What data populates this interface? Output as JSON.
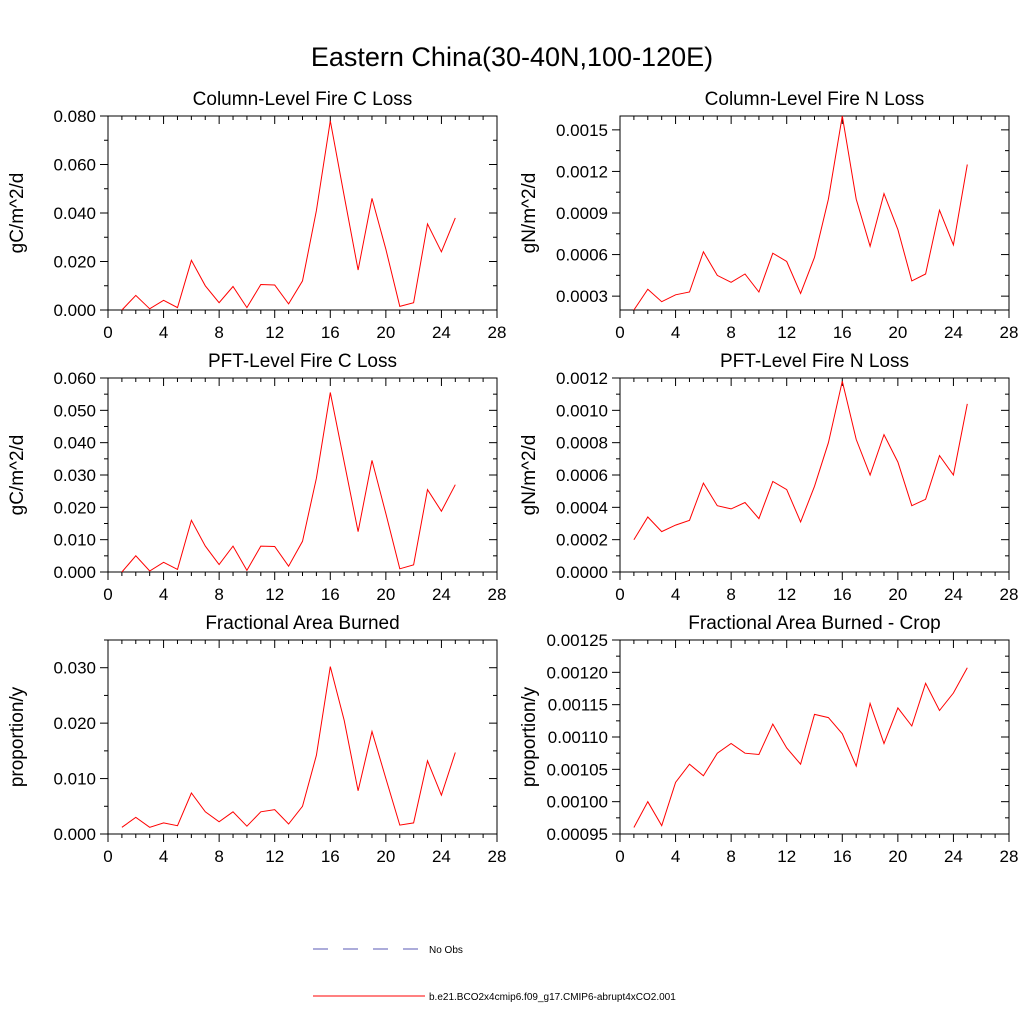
{
  "title": "Eastern China(30-40N,100-120E)",
  "colors": {
    "model": "#ff0000",
    "obs": "#5a5ab4",
    "axis": "#000000"
  },
  "legend": {
    "obs_label": "No Obs",
    "model_label": "b.e21.BCO2x4cmip6.f09_g17.CMIP6-abrupt4xCO2.001"
  },
  "chart_data": [
    {
      "type": "line",
      "title": "Column-Level Fire C Loss",
      "ylabel": "gC/m^2/d",
      "xlabel": "",
      "xlim": [
        0,
        28
      ],
      "xticks": [
        0,
        4,
        8,
        12,
        16,
        20,
        24,
        28
      ],
      "ylim": [
        0,
        0.08
      ],
      "yticks": [
        0,
        0.02,
        0.04,
        0.06,
        0.08
      ],
      "ytick_labels": [
        "0.000",
        "0.020",
        "0.040",
        "0.060",
        "0.080"
      ],
      "x": [
        1,
        2,
        3,
        4,
        5,
        6,
        7,
        8,
        9,
        10,
        11,
        12,
        13,
        14,
        15,
        16,
        17,
        18,
        19,
        20,
        21,
        22,
        23,
        24,
        25
      ],
      "series": [
        {
          "name": "b.e21.BCO2x4cmip6.f09_g17.CMIP6-abrupt4xCO2.001",
          "values": [
            0.0,
            0.006,
            0.0005,
            0.004,
            0.001,
            0.0205,
            0.01,
            0.003,
            0.0097,
            0.001,
            0.0105,
            0.0103,
            0.0025,
            0.012,
            0.041,
            0.078,
            0.047,
            0.0165,
            0.046,
            0.025,
            0.0015,
            0.003,
            0.0355,
            0.024,
            0.038
          ]
        }
      ]
    },
    {
      "type": "line",
      "title": "Column-Level Fire N Loss",
      "ylabel": "gN/m^2/d",
      "xlabel": "",
      "xlim": [
        0,
        28
      ],
      "xticks": [
        0,
        4,
        8,
        12,
        16,
        20,
        24,
        28
      ],
      "ylim": [
        0.0002,
        0.0016
      ],
      "yticks": [
        0.0003,
        0.0006,
        0.0009,
        0.0012,
        0.0015
      ],
      "ytick_labels": [
        "0.0003",
        "0.0006",
        "0.0009",
        "0.0012",
        "0.0015"
      ],
      "x": [
        1,
        2,
        3,
        4,
        5,
        6,
        7,
        8,
        9,
        10,
        11,
        12,
        13,
        14,
        15,
        16,
        17,
        18,
        19,
        20,
        21,
        22,
        23,
        24,
        25
      ],
      "series": [
        {
          "name": "b.e21.BCO2x4cmip6.f09_g17.CMIP6-abrupt4xCO2.001",
          "values": [
            0.0002,
            0.00035,
            0.00026,
            0.00031,
            0.00033,
            0.00062,
            0.00045,
            0.0004,
            0.00046,
            0.00033,
            0.00061,
            0.00055,
            0.00032,
            0.00058,
            0.001,
            0.0016,
            0.001,
            0.00066,
            0.00104,
            0.00078,
            0.00041,
            0.00046,
            0.00092,
            0.00067,
            0.00125
          ]
        }
      ]
    },
    {
      "type": "line",
      "title": "PFT-Level Fire C Loss",
      "ylabel": "gC/m^2/d",
      "xlabel": "",
      "xlim": [
        0,
        28
      ],
      "xticks": [
        0,
        4,
        8,
        12,
        16,
        20,
        24,
        28
      ],
      "ylim": [
        0,
        0.06
      ],
      "yticks": [
        0,
        0.01,
        0.02,
        0.03,
        0.04,
        0.05,
        0.06
      ],
      "ytick_labels": [
        "0.000",
        "0.010",
        "0.020",
        "0.030",
        "0.040",
        "0.050",
        "0.060"
      ],
      "x": [
        1,
        2,
        3,
        4,
        5,
        6,
        7,
        8,
        9,
        10,
        11,
        12,
        13,
        14,
        15,
        16,
        17,
        18,
        19,
        20,
        21,
        22,
        23,
        24,
        25
      ],
      "series": [
        {
          "name": "b.e21.BCO2x4cmip6.f09_g17.CMIP6-abrupt4xCO2.001",
          "values": [
            0.0,
            0.005,
            0.0003,
            0.003,
            0.0008,
            0.016,
            0.008,
            0.0023,
            0.008,
            0.0005,
            0.008,
            0.0079,
            0.0018,
            0.0095,
            0.029,
            0.0555,
            0.034,
            0.0125,
            0.0345,
            0.018,
            0.001,
            0.0022,
            0.0255,
            0.0188,
            0.027
          ]
        }
      ]
    },
    {
      "type": "line",
      "title": "PFT-Level Fire N Loss",
      "ylabel": "gN/m^2/d",
      "xlabel": "",
      "xlim": [
        0,
        28
      ],
      "xticks": [
        0,
        4,
        8,
        12,
        16,
        20,
        24,
        28
      ],
      "ylim": [
        0,
        0.0012
      ],
      "yticks": [
        0,
        0.0002,
        0.0004,
        0.0006,
        0.0008,
        0.001,
        0.0012
      ],
      "ytick_labels": [
        "0.0000",
        "0.0002",
        "0.0004",
        "0.0006",
        "0.0008",
        "0.0010",
        "0.0012"
      ],
      "x": [
        1,
        2,
        3,
        4,
        5,
        6,
        7,
        8,
        9,
        10,
        11,
        12,
        13,
        14,
        15,
        16,
        17,
        18,
        19,
        20,
        21,
        22,
        23,
        24,
        25
      ],
      "series": [
        {
          "name": "b.e21.BCO2x4cmip6.f09_g17.CMIP6-abrupt4xCO2.001",
          "values": [
            0.0002,
            0.00034,
            0.00025,
            0.00029,
            0.00032,
            0.00055,
            0.00041,
            0.00039,
            0.00043,
            0.00033,
            0.00056,
            0.00051,
            0.00031,
            0.00053,
            0.0008,
            0.00118,
            0.00082,
            0.0006,
            0.00085,
            0.00068,
            0.00041,
            0.00045,
            0.00072,
            0.0006,
            0.00104
          ]
        }
      ]
    },
    {
      "type": "line",
      "title": "Fractional Area Burned",
      "ylabel": "proportion/y",
      "xlabel": "",
      "xlim": [
        0,
        28
      ],
      "xticks": [
        0,
        4,
        8,
        12,
        16,
        20,
        24,
        28
      ],
      "ylim": [
        0,
        0.035
      ],
      "yticks": [
        0,
        0.01,
        0.02,
        0.03
      ],
      "ytick_labels": [
        "0.000",
        "0.010",
        "0.020",
        "0.030"
      ],
      "x": [
        1,
        2,
        3,
        4,
        5,
        6,
        7,
        8,
        9,
        10,
        11,
        12,
        13,
        14,
        15,
        16,
        17,
        18,
        19,
        20,
        21,
        22,
        23,
        24,
        25
      ],
      "series": [
        {
          "name": "b.e21.BCO2x4cmip6.f09_g17.CMIP6-abrupt4xCO2.001",
          "values": [
            0.0012,
            0.003,
            0.0012,
            0.002,
            0.0015,
            0.0074,
            0.004,
            0.0022,
            0.004,
            0.0014,
            0.004,
            0.0044,
            0.0018,
            0.005,
            0.0142,
            0.0302,
            0.0205,
            0.0078,
            0.0185,
            0.01,
            0.0016,
            0.002,
            0.0132,
            0.007,
            0.0147
          ]
        }
      ]
    },
    {
      "type": "line",
      "title": "Fractional Area Burned - Crop",
      "ylabel": "proportion/y",
      "xlabel": "",
      "xlim": [
        0,
        28
      ],
      "xticks": [
        0,
        4,
        8,
        12,
        16,
        20,
        24,
        28
      ],
      "ylim": [
        0.00095,
        0.00125
      ],
      "yticks": [
        0.00095,
        0.001,
        0.00105,
        0.0011,
        0.00115,
        0.0012,
        0.00125
      ],
      "ytick_labels": [
        "0.00095",
        "0.00100",
        "0.00105",
        "0.00110",
        "0.00115",
        "0.00120",
        "0.00125"
      ],
      "x": [
        1,
        2,
        3,
        4,
        5,
        6,
        7,
        8,
        9,
        10,
        11,
        12,
        13,
        14,
        15,
        16,
        17,
        18,
        19,
        20,
        21,
        22,
        23,
        24,
        25
      ],
      "series": [
        {
          "name": "b.e21.BCO2x4cmip6.f09_g17.CMIP6-abrupt4xCO2.001",
          "values": [
            0.00096,
            0.001,
            0.000963,
            0.00103,
            0.001058,
            0.00104,
            0.001075,
            0.00109,
            0.001075,
            0.001073,
            0.00112,
            0.001083,
            0.001058,
            0.001135,
            0.00113,
            0.001105,
            0.001055,
            0.001152,
            0.00109,
            0.001145,
            0.001117,
            0.001183,
            0.001141,
            0.001168,
            0.001207
          ]
        }
      ]
    }
  ]
}
